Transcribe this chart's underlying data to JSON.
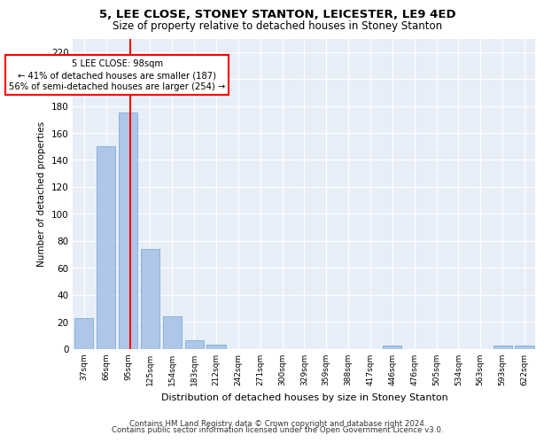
{
  "title1": "5, LEE CLOSE, STONEY STANTON, LEICESTER, LE9 4ED",
  "title2": "Size of property relative to detached houses in Stoney Stanton",
  "xlabel": "Distribution of detached houses by size in Stoney Stanton",
  "ylabel": "Number of detached properties",
  "categories": [
    "37sqm",
    "66sqm",
    "95sqm",
    "125sqm",
    "154sqm",
    "183sqm",
    "212sqm",
    "242sqm",
    "271sqm",
    "300sqm",
    "329sqm",
    "359sqm",
    "388sqm",
    "417sqm",
    "446sqm",
    "476sqm",
    "505sqm",
    "534sqm",
    "563sqm",
    "593sqm",
    "622sqm"
  ],
  "values": [
    23,
    150,
    175,
    74,
    24,
    6,
    3,
    0,
    0,
    0,
    0,
    0,
    0,
    0,
    2,
    0,
    0,
    0,
    0,
    2,
    2
  ],
  "bar_color": "#aec6e8",
  "bar_edge_color": "#7aafd4",
  "vline_color": "red",
  "annotation_text": "5 LEE CLOSE: 98sqm\n← 41% of detached houses are smaller (187)\n56% of semi-detached houses are larger (254) →",
  "ylim": [
    0,
    230
  ],
  "yticks": [
    0,
    20,
    40,
    60,
    80,
    100,
    120,
    140,
    160,
    180,
    200,
    220
  ],
  "footer1": "Contains HM Land Registry data © Crown copyright and database right 2024.",
  "footer2": "Contains public sector information licensed under the Open Government Licence v3.0.",
  "plot_bg_color": "#e8eef8"
}
